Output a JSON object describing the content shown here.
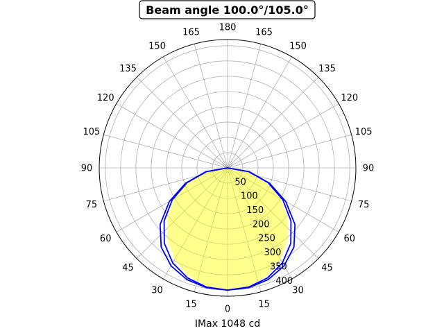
{
  "chart_data": {
    "type": "polar",
    "title": "Beam angle 100.0°/105.0°",
    "xlabel": "IMax 1048 cd",
    "angle_ticks": {
      "degrees": [
        0,
        15,
        30,
        45,
        60,
        75,
        90,
        105,
        120,
        135,
        150,
        165,
        180,
        195,
        210,
        225,
        240,
        255,
        270,
        285,
        300,
        315,
        330,
        345
      ],
      "labels": [
        "0",
        "15",
        "30",
        "45",
        "60",
        "75",
        "90",
        "105",
        "120",
        "135",
        "150",
        "165",
        "180",
        "165",
        "150",
        "135",
        "120",
        "105",
        "90",
        "75",
        "60",
        "45",
        "30",
        "15"
      ]
    },
    "radial_ticks": [
      50,
      100,
      150,
      200,
      250,
      300,
      350,
      400
    ],
    "rlim": [
      0,
      420
    ],
    "grid": true,
    "series": [
      {
        "style": "filled",
        "color": "#ffff00",
        "opacity": 0.45,
        "theta_deg": [
          0,
          10,
          20,
          30,
          40,
          50,
          60,
          70,
          80,
          90
        ],
        "r": [
          400,
          394,
          376,
          346,
          306,
          257,
          200,
          137,
          69,
          0
        ]
      },
      {
        "style": "line",
        "color": "#0000ff",
        "theta_deg": [
          0,
          10,
          20,
          30,
          40,
          50,
          60,
          70,
          80,
          90
        ],
        "r": [
          400,
          398,
          389,
          370,
          338,
          288,
          220,
          146,
          72,
          0
        ]
      },
      {
        "style": "line",
        "color": "#0000ff",
        "theta_deg": [
          0,
          10,
          20,
          30,
          40,
          50,
          60,
          70,
          80,
          90
        ],
        "r": [
          400,
          396,
          383,
          359,
          322,
          271,
          209,
          141,
          70,
          0
        ]
      }
    ]
  }
}
